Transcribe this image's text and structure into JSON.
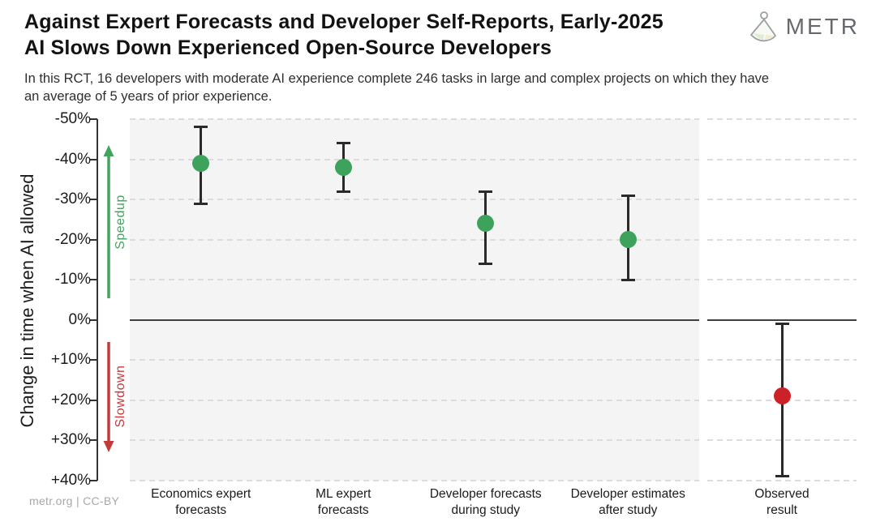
{
  "header": {
    "title_line1": "Against Expert Forecasts and Developer Self-Reports, Early-2025",
    "title_line2": "AI Slows Down Experienced Open-Source Developers",
    "logo_text": "METR"
  },
  "subtitle": "In this RCT, 16 developers with moderate AI experience complete 246 tasks in large and complex projects on which they have an average of 5 years of prior experience.",
  "footer": "metr.org  |  CC-BY",
  "colors": {
    "speedup_green": "#43a45f",
    "slowdown_red": "#c43a3a",
    "point_green": "#3da35c",
    "point_red": "#cb2127",
    "panel_gray": "#f4f4f5",
    "grid_gray": "#dcdcdc",
    "zero_line": "#3f3f3f",
    "errorbar_dark": "#2a2a2a"
  },
  "chart_data": {
    "type": "scatter",
    "subtype": "point-estimates-with-95pct-confidence-intervals",
    "title": "Against Expert Forecasts and Developer Self-Reports, Early-2025 AI Slows Down Experienced Open-Source Developers",
    "xlabel": "",
    "ylabel": "Change in time when AI allowed",
    "ylim": [
      -50,
      40
    ],
    "y_axis_inverted": true,
    "grid": "horizontal dashed every 10%",
    "legend_position": "none",
    "y_ticks": [
      {
        "value": -50,
        "label": "-50%"
      },
      {
        "value": -40,
        "label": "-40%"
      },
      {
        "value": -30,
        "label": "-30%"
      },
      {
        "value": -20,
        "label": "-20%"
      },
      {
        "value": -10,
        "label": "-10%"
      },
      {
        "value": 0,
        "label": "0%"
      },
      {
        "value": 10,
        "label": "+10%"
      },
      {
        "value": 20,
        "label": "+20%"
      },
      {
        "value": 30,
        "label": "+30%"
      },
      {
        "value": 40,
        "label": "+40%"
      }
    ],
    "annotations": {
      "speedup": {
        "label": "Speedup",
        "color": "#43a45f",
        "direction": "up",
        "range_pct": [
          -45,
          -6
        ]
      },
      "slowdown": {
        "label": "Slowdown",
        "color": "#c43a3a",
        "direction": "down",
        "range_pct": [
          6,
          33
        ]
      }
    },
    "categories": [
      "Economics expert forecasts",
      "ML expert forecasts",
      "Developer forecasts during study",
      "Developer estimates after study",
      "Observed result"
    ],
    "points": [
      {
        "label_lines": [
          "Economics expert",
          "forecasts"
        ],
        "value": -39,
        "ci": [
          -48,
          -29
        ],
        "color": "#3da35c",
        "panel": "left"
      },
      {
        "label_lines": [
          "ML expert",
          "forecasts"
        ],
        "value": -38,
        "ci": [
          -44,
          -32
        ],
        "color": "#3da35c",
        "panel": "left"
      },
      {
        "label_lines": [
          "Developer forecasts",
          "during study"
        ],
        "value": -24,
        "ci": [
          -32,
          -14
        ],
        "color": "#3da35c",
        "panel": "left"
      },
      {
        "label_lines": [
          "Developer estimates",
          "after study"
        ],
        "value": -20,
        "ci": [
          -31,
          -10
        ],
        "color": "#3da35c",
        "panel": "left"
      },
      {
        "label_lines": [
          "Observed",
          "result"
        ],
        "value": 19,
        "ci": [
          1,
          39
        ],
        "color": "#cb2127",
        "panel": "right"
      }
    ],
    "zero_line": 0,
    "units": "percent change in task completion time when AI allowed"
  }
}
